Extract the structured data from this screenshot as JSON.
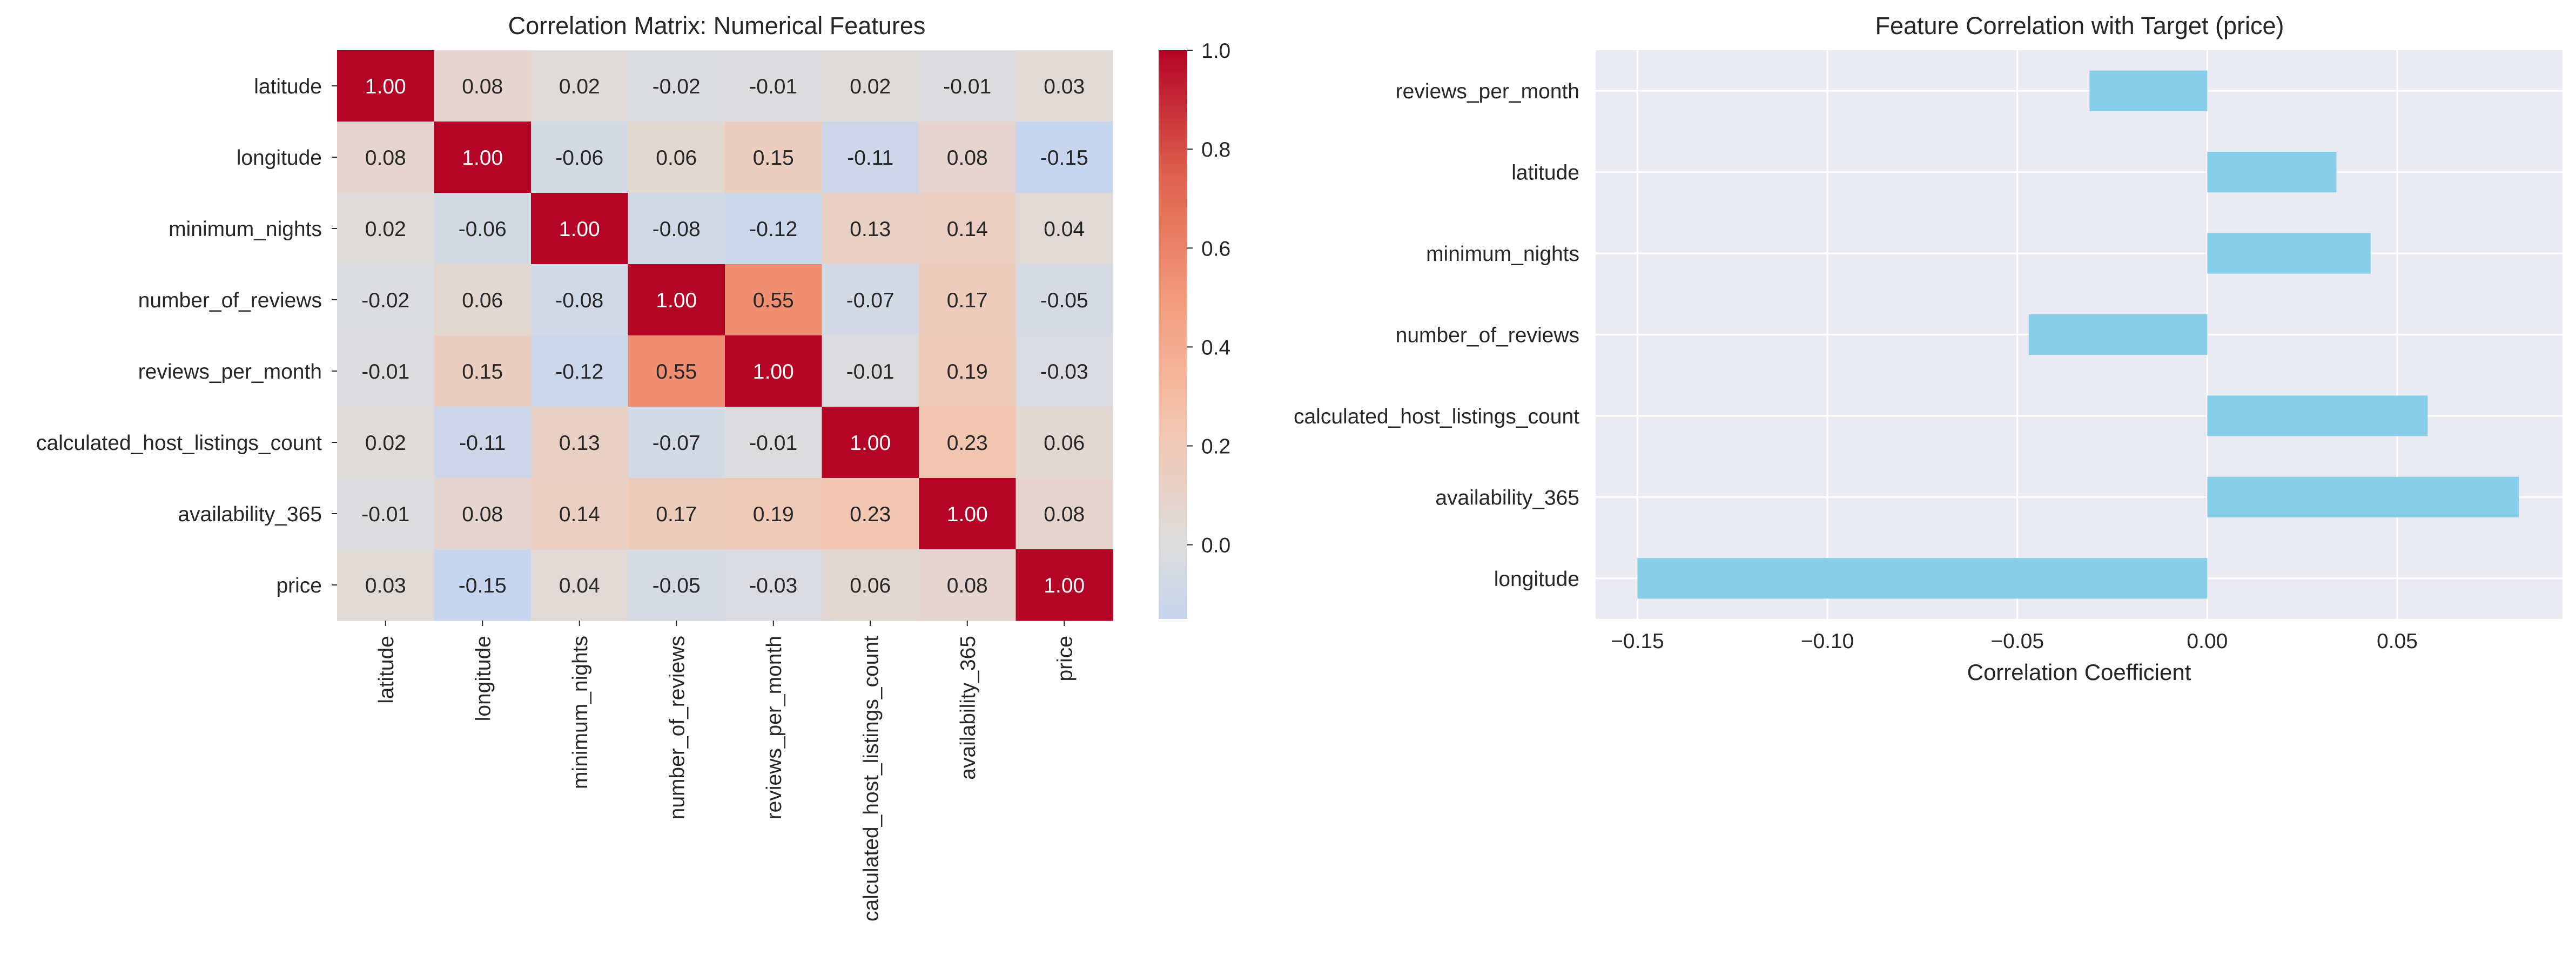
{
  "chart_data": [
    {
      "type": "heatmap",
      "title": "Correlation Matrix: Numerical Features",
      "rows": [
        "latitude",
        "longitude",
        "minimum_nights",
        "number_of_reviews",
        "reviews_per_month",
        "calculated_host_listings_count",
        "availability_365",
        "price"
      ],
      "columns": [
        "latitude",
        "longitude",
        "minimum_nights",
        "number_of_reviews",
        "reviews_per_month",
        "calculated_host_listings_count",
        "availability_365",
        "price"
      ],
      "values": [
        [
          1.0,
          0.08,
          0.02,
          -0.02,
          -0.01,
          0.02,
          -0.01,
          0.03
        ],
        [
          0.08,
          1.0,
          -0.06,
          0.06,
          0.15,
          -0.11,
          0.08,
          -0.15
        ],
        [
          0.02,
          -0.06,
          1.0,
          -0.08,
          -0.12,
          0.13,
          0.14,
          0.04
        ],
        [
          -0.02,
          0.06,
          -0.08,
          1.0,
          0.55,
          -0.07,
          0.17,
          -0.05
        ],
        [
          -0.01,
          0.15,
          -0.12,
          0.55,
          1.0,
          -0.01,
          0.19,
          -0.03
        ],
        [
          0.02,
          -0.11,
          0.13,
          -0.07,
          -0.01,
          1.0,
          0.23,
          0.06
        ],
        [
          -0.01,
          0.08,
          0.14,
          0.17,
          0.19,
          0.23,
          1.0,
          0.08
        ],
        [
          0.03,
          -0.15,
          0.04,
          -0.05,
          -0.03,
          0.06,
          0.08,
          1.0
        ]
      ],
      "value_labels": [
        [
          "1.00",
          "0.08",
          "0.02",
          "-0.02",
          "-0.01",
          "0.02",
          "-0.01",
          "0.03"
        ],
        [
          "0.08",
          "1.00",
          "-0.06",
          "0.06",
          "0.15",
          "-0.11",
          "0.08",
          "-0.15"
        ],
        [
          "0.02",
          "-0.06",
          "1.00",
          "-0.08",
          "-0.12",
          "0.13",
          "0.14",
          "0.04"
        ],
        [
          "-0.02",
          "0.06",
          "-0.08",
          "1.00",
          "0.55",
          "-0.07",
          "0.17",
          "-0.05"
        ],
        [
          "-0.01",
          "0.15",
          "-0.12",
          "0.55",
          "1.00",
          "-0.01",
          "0.19",
          "-0.03"
        ],
        [
          "0.02",
          "-0.11",
          "0.13",
          "-0.07",
          "-0.01",
          "1.00",
          "0.23",
          "0.06"
        ],
        [
          "-0.01",
          "0.08",
          "0.14",
          "0.17",
          "0.19",
          "0.23",
          "1.00",
          "0.08"
        ],
        [
          "0.03",
          "-0.15",
          "0.04",
          "-0.05",
          "-0.03",
          "0.06",
          "0.08",
          "1.00"
        ]
      ],
      "colormap": "coolwarm",
      "center": 0.0,
      "colorbar": {
        "range": [
          -0.15,
          1.0
        ],
        "ticks": [
          0.0,
          0.2,
          0.4,
          0.6,
          0.8,
          1.0
        ],
        "tick_labels": [
          "0.0",
          "0.2",
          "0.4",
          "0.6",
          "0.8",
          "1.0"
        ]
      },
      "xlabel": "",
      "ylabel": ""
    },
    {
      "type": "bar",
      "orientation": "horizontal",
      "title": "Feature Correlation with Target (price)",
      "categories": [
        "reviews_per_month",
        "latitude",
        "minimum_nights",
        "number_of_reviews",
        "calculated_host_listings_count",
        "availability_365",
        "longitude"
      ],
      "values": [
        -0.031,
        0.034,
        0.043,
        -0.047,
        0.058,
        0.082,
        -0.15
      ],
      "xlabel": "Correlation Coefficient",
      "ylabel": "",
      "xlim": [
        -0.161,
        0.0935
      ],
      "xticks": [
        -0.15,
        -0.1,
        -0.05,
        0.0,
        0.05
      ],
      "xtick_labels": [
        "−0.15",
        "−0.10",
        "−0.05",
        "0.00",
        "0.05"
      ],
      "bar_color": "#87CEEB",
      "background_color": "#EAEAF2",
      "grid": true
    }
  ]
}
